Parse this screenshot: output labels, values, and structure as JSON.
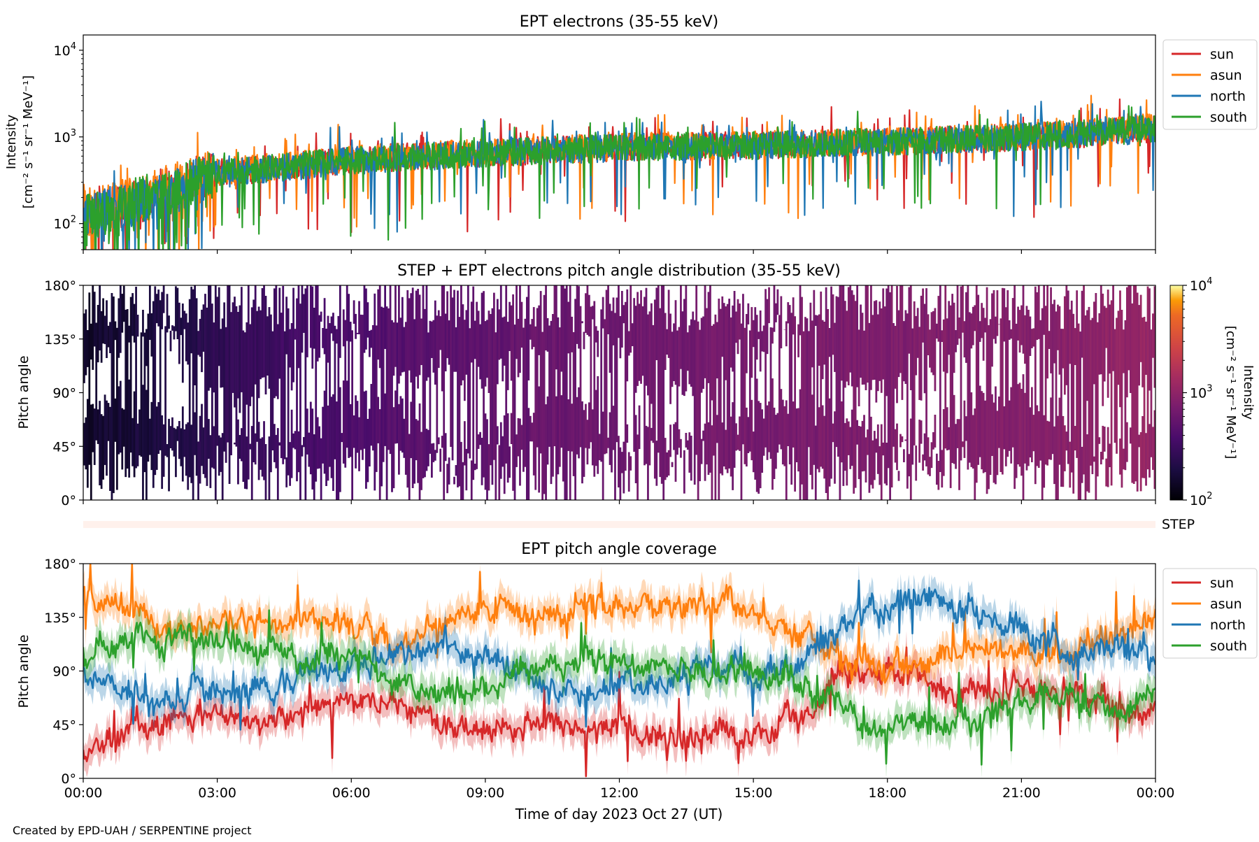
{
  "credit": "Created by EPD-UAH / SERPENTINE project",
  "shared_x": {
    "label": "Time of day 2023 Oct 27 (UT)",
    "range_hours": [
      0,
      24
    ],
    "tick_labels": [
      "00:00",
      "03:00",
      "06:00",
      "09:00",
      "12:00",
      "15:00",
      "18:00",
      "21:00",
      "00:00"
    ]
  },
  "chart_data": [
    {
      "type": "line",
      "title": "EPT electrons (35-55 keV)",
      "ylabel_line1": "Intensity",
      "ylabel_line2": "[cm⁻² s⁻¹ sr⁻¹ MeV⁻¹]",
      "yscale": "log",
      "ylim": [
        50,
        15000
      ],
      "y_tick_labels": [
        {
          "value": 100,
          "base": "10",
          "exp": "2"
        },
        {
          "value": 1000,
          "base": "10",
          "exp": "3"
        },
        {
          "value": 10000,
          "base": "10",
          "exp": "4"
        }
      ],
      "legend": "top-right, outside",
      "series": [
        {
          "name": "sun",
          "color": "#d62728",
          "x": [
            0,
            1,
            2,
            3,
            4,
            5,
            6,
            7,
            8,
            9,
            10,
            11,
            12,
            13,
            14,
            15,
            16,
            17,
            18,
            19,
            20,
            21,
            22,
            23,
            24
          ],
          "values": [
            120,
            170,
            250,
            380,
            430,
            480,
            540,
            580,
            620,
            650,
            690,
            720,
            760,
            780,
            790,
            800,
            820,
            860,
            880,
            910,
            950,
            1000,
            1050,
            1150,
            1250
          ]
        },
        {
          "name": "asun",
          "color": "#ff7f0e",
          "x": [
            0,
            1,
            2,
            3,
            4,
            5,
            6,
            7,
            8,
            9,
            10,
            11,
            12,
            13,
            14,
            15,
            16,
            17,
            18,
            19,
            20,
            21,
            22,
            23,
            24
          ],
          "values": [
            130,
            180,
            260,
            390,
            440,
            490,
            550,
            590,
            630,
            660,
            700,
            730,
            770,
            790,
            800,
            810,
            830,
            870,
            890,
            920,
            960,
            1010,
            1060,
            1170,
            1300
          ]
        },
        {
          "name": "north",
          "color": "#1f77b4",
          "x": [
            0,
            1,
            2,
            3,
            4,
            5,
            6,
            7,
            8,
            9,
            10,
            11,
            12,
            13,
            14,
            15,
            16,
            17,
            18,
            19,
            20,
            21,
            22,
            23,
            24
          ],
          "values": [
            110,
            160,
            240,
            370,
            420,
            470,
            530,
            570,
            610,
            640,
            680,
            710,
            750,
            770,
            780,
            790,
            810,
            850,
            870,
            900,
            940,
            990,
            1040,
            1140,
            1240
          ]
        },
        {
          "name": "south",
          "color": "#2ca02c",
          "x": [
            0,
            1,
            2,
            3,
            4,
            5,
            6,
            7,
            8,
            9,
            10,
            11,
            12,
            13,
            14,
            15,
            16,
            17,
            18,
            19,
            20,
            21,
            22,
            23,
            24
          ],
          "values": [
            115,
            165,
            245,
            375,
            425,
            475,
            535,
            575,
            615,
            645,
            685,
            715,
            755,
            775,
            785,
            795,
            815,
            855,
            875,
            905,
            945,
            995,
            1045,
            1145,
            1245
          ]
        }
      ]
    },
    {
      "type": "heatmap",
      "title": "STEP + EPT electrons pitch angle distribution (35-55 keV)",
      "ylabel": "Pitch angle",
      "ylim": [
        0,
        180
      ],
      "y_tick_labels": [
        "0°",
        "45°",
        "90°",
        "135°",
        "180°"
      ],
      "y_tick_values": [
        0,
        45,
        90,
        135,
        180
      ],
      "colormap": "inferno",
      "colorbar": {
        "label_line1": "Intensity",
        "label_line2": "[cm⁻² s⁻¹ sr⁻¹ MeV⁻¹]",
        "scale": "log",
        "range": [
          100,
          10000
        ],
        "tick_labels": [
          {
            "value": 100,
            "base": "10",
            "exp": "2"
          },
          {
            "value": 1000,
            "base": "10",
            "exp": "3"
          },
          {
            "value": 10000,
            "base": "10",
            "exp": "4"
          }
        ]
      },
      "time_hours": [
        0,
        2,
        4,
        6,
        8,
        10,
        12,
        14,
        16,
        18,
        20,
        22,
        24
      ],
      "intensity": [
        150,
        200,
        300,
        400,
        480,
        560,
        620,
        680,
        720,
        770,
        820,
        900,
        1100
      ]
    },
    {
      "type": "heatmap",
      "label": "STEP",
      "state": "no data"
    },
    {
      "type": "line",
      "title": "EPT pitch angle coverage",
      "ylabel": "Pitch angle",
      "ylim": [
        0,
        180
      ],
      "y_tick_labels": [
        "0°",
        "45°",
        "90°",
        "135°",
        "180°"
      ],
      "y_tick_values": [
        0,
        45,
        90,
        135,
        180
      ],
      "legend": "top-right, outside",
      "series": [
        {
          "name": "sun",
          "color": "#d62728",
          "x": [
            0,
            1,
            2,
            3,
            4,
            5,
            6,
            7,
            8,
            9,
            10,
            11,
            12,
            13,
            14,
            15,
            16,
            17,
            18,
            19,
            20,
            21,
            22,
            23,
            24
          ],
          "values": [
            20,
            40,
            50,
            55,
            50,
            55,
            60,
            60,
            50,
            40,
            45,
            40,
            40,
            35,
            35,
            40,
            55,
            85,
            90,
            80,
            70,
            80,
            75,
            60,
            50
          ]
        },
        {
          "name": "asun",
          "color": "#ff7f0e",
          "x": [
            0,
            1,
            2,
            3,
            4,
            5,
            6,
            7,
            8,
            9,
            10,
            11,
            12,
            13,
            14,
            15,
            16,
            17,
            18,
            19,
            20,
            21,
            22,
            23,
            24
          ],
          "values": [
            160,
            140,
            130,
            125,
            130,
            130,
            125,
            115,
            130,
            140,
            140,
            145,
            145,
            145,
            145,
            140,
            125,
            95,
            90,
            100,
            115,
            105,
            105,
            120,
            130
          ]
        },
        {
          "name": "north",
          "color": "#1f77b4",
          "x": [
            0,
            1,
            2,
            3,
            4,
            5,
            6,
            7,
            8,
            9,
            10,
            11,
            12,
            13,
            14,
            15,
            16,
            17,
            18,
            19,
            20,
            21,
            22,
            23,
            24
          ],
          "values": [
            90,
            75,
            70,
            70,
            80,
            85,
            90,
            100,
            110,
            100,
            80,
            70,
            75,
            85,
            95,
            90,
            95,
            130,
            140,
            150,
            140,
            125,
            115,
            110,
            105
          ]
        },
        {
          "name": "south",
          "color": "#2ca02c",
          "x": [
            0,
            1,
            2,
            3,
            4,
            5,
            6,
            7,
            8,
            9,
            10,
            11,
            12,
            13,
            14,
            15,
            16,
            17,
            18,
            19,
            20,
            21,
            22,
            23,
            24
          ],
          "values": [
            100,
            115,
            120,
            115,
            105,
            100,
            100,
            80,
            70,
            75,
            95,
            100,
            100,
            95,
            90,
            90,
            80,
            55,
            45,
            40,
            50,
            60,
            65,
            65,
            70
          ]
        }
      ]
    }
  ]
}
